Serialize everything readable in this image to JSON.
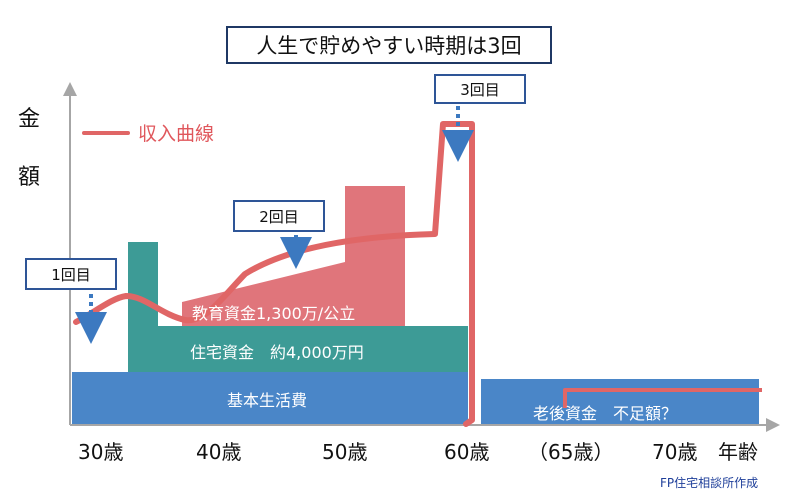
{
  "title": "人生で貯めやすい時期は3回",
  "axis": {
    "y_label_chars": [
      "金",
      "額"
    ],
    "x_ticks": [
      "30歳",
      "40歳",
      "50歳",
      "60歳",
      "（65歳）",
      "70歳",
      "年齢"
    ]
  },
  "legend": {
    "income_curve": "収入曲線"
  },
  "periods": [
    "1回目",
    "2回目",
    "3回目"
  ],
  "bands": {
    "basic_living": "基本生活費",
    "housing": "住宅資金　約4,000万円",
    "education": "教育資金1,300万/公立",
    "retirement": "老後資金　不足額？"
  },
  "credit": "FP住宅相談所作成",
  "colors": {
    "basic_living": "#4a86c8",
    "housing": "#3d9b96",
    "education": "#e0757b",
    "income_curve": "#e06666",
    "arrow": "#3c79c0",
    "label_border": "#2e5597"
  }
}
